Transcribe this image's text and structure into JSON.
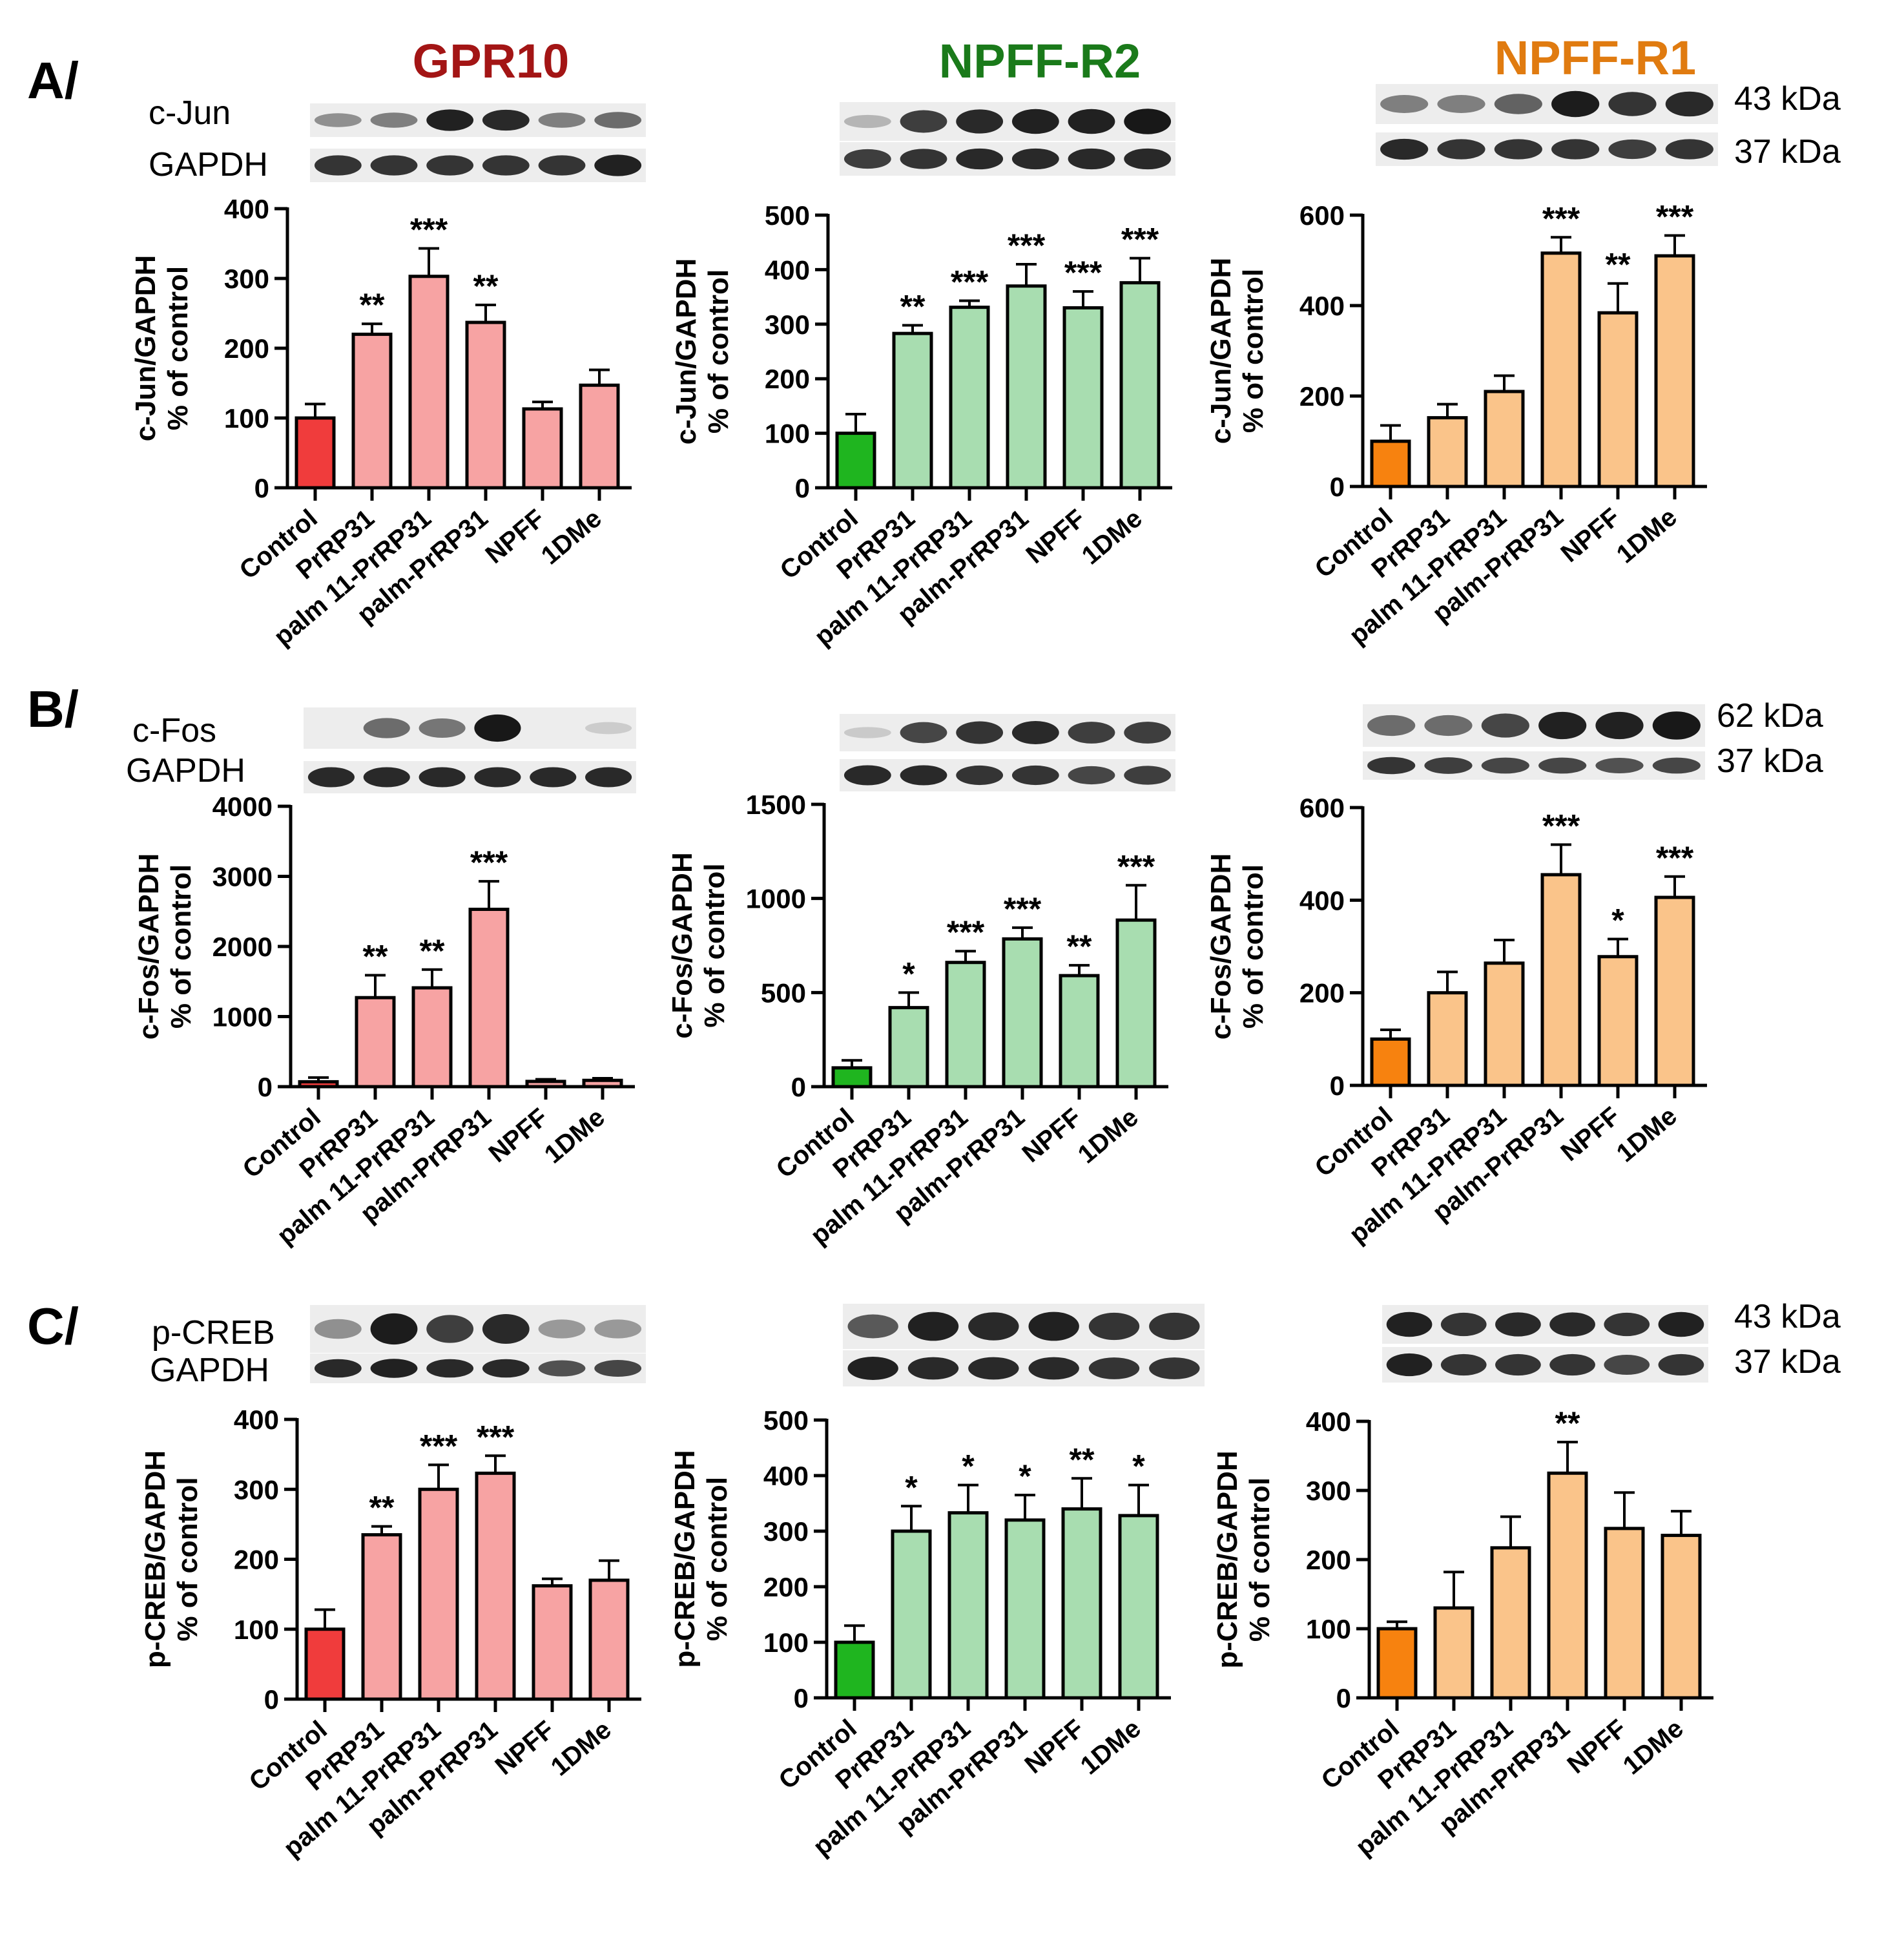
{
  "figure": {
    "panel_labels": [
      "A/",
      "B/",
      "C/"
    ],
    "column_titles": [
      {
        "text": "GPR10",
        "color": "#a31515"
      },
      {
        "text": "NPFF-R2",
        "color": "#1a7a1a"
      },
      {
        "text": "NPFF-R1",
        "color": "#e07b10"
      }
    ],
    "blot_labels": {
      "A": [
        "c-Jun",
        "GAPDH"
      ],
      "B": [
        "c-Fos",
        "GAPDH"
      ],
      "C": [
        "p-CREB",
        "GAPDH"
      ]
    },
    "kda_labels": {
      "A": [
        "43 kDa",
        "37 kDa"
      ],
      "B": [
        "62 kDa",
        "37 kDa"
      ],
      "C": [
        "43 kDa",
        "37 kDa"
      ]
    },
    "colors": {
      "gpr10_control": "#f03c3c",
      "gpr10_treat": "#f7a3a3",
      "npffr2_control": "#1fb51f",
      "npffr2_treat": "#a8ddb0",
      "npffr1_control": "#f7820f",
      "npffr1_treat": "#fac48a"
    }
  },
  "chart_data": [
    {
      "id": "A-GPR10",
      "type": "bar",
      "ylabel": [
        "c-Jun/GAPDH",
        "% of control"
      ],
      "categories": [
        "Control",
        "PrRP31",
        "palm 11-PrRP31",
        "palm-PrRP31",
        "NPFF",
        "1DMe"
      ],
      "values": [
        100,
        220,
        303,
        237,
        113,
        147
      ],
      "errors": [
        20,
        15,
        40,
        25,
        10,
        22
      ],
      "significance": [
        "",
        "**",
        "***",
        "**",
        "",
        ""
      ],
      "ylim": [
        0,
        400
      ],
      "yticks": [
        0,
        100,
        200,
        300,
        400
      ]
    },
    {
      "id": "A-NPFF-R2",
      "type": "bar",
      "ylabel": [
        "c-Jun/GAPDH",
        "% of control"
      ],
      "categories": [
        "Control",
        "PrRP31",
        "palm 11-PrRP31",
        "palm-PrRP31",
        "NPFF",
        "1DMe"
      ],
      "values": [
        100,
        283,
        331,
        370,
        330,
        376
      ],
      "errors": [
        35,
        15,
        12,
        40,
        30,
        45
      ],
      "significance": [
        "",
        "**",
        "***",
        "***",
        "***",
        "***"
      ],
      "ylim": [
        0,
        500
      ],
      "yticks": [
        0,
        100,
        200,
        300,
        400,
        500
      ]
    },
    {
      "id": "A-NPFF-R1",
      "type": "bar",
      "ylabel": [
        "c-Jun/GAPDH",
        "% of control"
      ],
      "categories": [
        "Control",
        "PrRP31",
        "palm 11-PrRP31",
        "palm-PrRP31",
        "NPFF",
        "1DMe"
      ],
      "values": [
        100,
        152,
        210,
        516,
        384,
        510
      ],
      "errors": [
        35,
        30,
        35,
        35,
        65,
        45
      ],
      "significance": [
        "",
        "",
        "",
        "***",
        "**",
        "***"
      ],
      "ylim": [
        0,
        600
      ],
      "yticks": [
        0,
        200,
        400,
        600
      ]
    },
    {
      "id": "B-GPR10",
      "type": "bar",
      "ylabel": [
        "c-Fos/GAPDH",
        "% of control"
      ],
      "categories": [
        "Control",
        "PrRP31",
        "palm 11-PrRP31",
        "palm-PrRP31",
        "NPFF",
        "1DMe"
      ],
      "values": [
        70,
        1270,
        1410,
        2530,
        75,
        90
      ],
      "errors": [
        60,
        320,
        260,
        400,
        30,
        30
      ],
      "significance": [
        "",
        "**",
        "**",
        "***",
        "",
        ""
      ],
      "ylim": [
        0,
        4000
      ],
      "yticks": [
        0,
        1000,
        2000,
        3000,
        4000
      ]
    },
    {
      "id": "B-NPFF-R2",
      "type": "bar",
      "ylabel": [
        "c-Fos/GAPDH",
        "% of control"
      ],
      "categories": [
        "Control",
        "PrRP31",
        "palm 11-PrRP31",
        "palm-PrRP31",
        "NPFF",
        "1DMe"
      ],
      "values": [
        100,
        420,
        660,
        785,
        590,
        885
      ],
      "errors": [
        40,
        80,
        60,
        60,
        55,
        185
      ],
      "significance": [
        "",
        "*",
        "***",
        "***",
        "**",
        "***"
      ],
      "ylim": [
        0,
        1500
      ],
      "yticks": [
        0,
        500,
        1000,
        1500
      ]
    },
    {
      "id": "B-NPFF-R1",
      "type": "bar",
      "ylabel": [
        "c-Fos/GAPDH",
        "% of control"
      ],
      "categories": [
        "Control",
        "PrRP31",
        "palm 11-PrRP31",
        "palm-PrRP31",
        "NPFF",
        "1DMe"
      ],
      "values": [
        100,
        200,
        264,
        455,
        278,
        406
      ],
      "errors": [
        20,
        45,
        50,
        65,
        38,
        45
      ],
      "significance": [
        "",
        "",
        "",
        "***",
        "*",
        "***"
      ],
      "ylim": [
        0,
        600
      ],
      "yticks": [
        0,
        200,
        400,
        600
      ]
    },
    {
      "id": "C-GPR10",
      "type": "bar",
      "ylabel": [
        "p-CREB/GAPDH",
        "% of control"
      ],
      "categories": [
        "Control",
        "PrRP31",
        "palm 11-PrRP31",
        "palm-PrRP31",
        "NPFF",
        "1DMe"
      ],
      "values": [
        100,
        235,
        300,
        323,
        162,
        170
      ],
      "errors": [
        28,
        12,
        35,
        25,
        10,
        28
      ],
      "significance": [
        "",
        "**",
        "***",
        "***",
        "",
        ""
      ],
      "ylim": [
        0,
        400
      ],
      "yticks": [
        0,
        100,
        200,
        300,
        400
      ]
    },
    {
      "id": "C-NPFF-R2",
      "type": "bar",
      "ylabel": [
        "p-CREB/GAPDH",
        "% of control"
      ],
      "categories": [
        "Control",
        "PrRP31",
        "palm 11-PrRP31",
        "palm-PrRP31",
        "NPFF",
        "1DMe"
      ],
      "values": [
        100,
        300,
        333,
        320,
        340,
        328
      ],
      "errors": [
        30,
        45,
        50,
        45,
        55,
        55
      ],
      "significance": [
        "",
        "*",
        "*",
        "*",
        "**",
        "*"
      ],
      "ylim": [
        0,
        500
      ],
      "yticks": [
        0,
        100,
        200,
        300,
        400,
        500
      ]
    },
    {
      "id": "C-NPFF-R1",
      "type": "bar",
      "ylabel": [
        "p-CREB/GAPDH",
        "% of control"
      ],
      "categories": [
        "Control",
        "PrRP31",
        "palm 11-PrRP31",
        "palm-PrRP31",
        "NPFF",
        "1DMe"
      ],
      "values": [
        100,
        130,
        217,
        325,
        245,
        235
      ],
      "errors": [
        10,
        52,
        45,
        45,
        52,
        35
      ],
      "significance": [
        "",
        "",
        "",
        "**",
        "",
        ""
      ],
      "ylim": [
        0,
        400
      ],
      "yticks": [
        0,
        100,
        200,
        300,
        400
      ]
    }
  ]
}
